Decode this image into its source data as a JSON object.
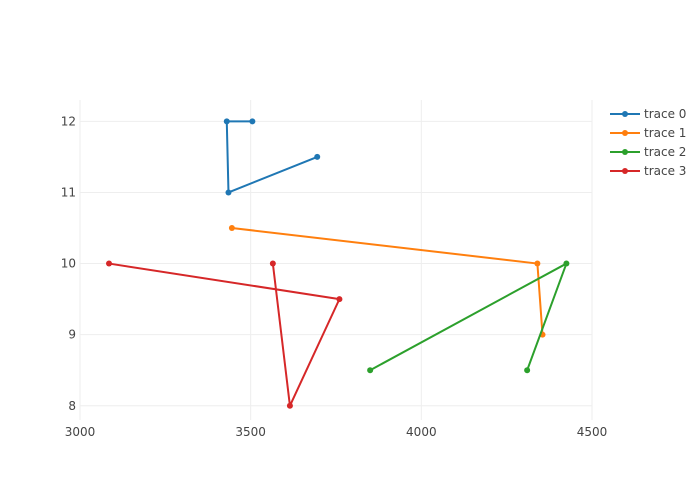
{
  "chart_data": {
    "type": "line",
    "title": "",
    "xlabel": "",
    "ylabel": "",
    "xlim": [
      3000,
      4500
    ],
    "ylim": [
      7.8,
      12.3
    ],
    "grid": true,
    "legend_position": "top-right",
    "x_ticks": [
      "3000",
      "3500",
      "4000",
      "4500"
    ],
    "y_ticks": [
      "8",
      "9",
      "10",
      "11",
      "12"
    ],
    "series": [
      {
        "name": "trace 0",
        "color": "#1f77b4",
        "x": [
          3505,
          3430,
          3435,
          3695
        ],
        "y": [
          12,
          12,
          11,
          11.5
        ]
      },
      {
        "name": "trace 1",
        "color": "#ff7f0e",
        "x": [
          3445,
          4340,
          4355
        ],
        "y": [
          10.5,
          10,
          9
        ]
      },
      {
        "name": "trace 2",
        "color": "#2ca02c",
        "x": [
          3850,
          4425,
          4310
        ],
        "y": [
          8.5,
          10,
          8.5
        ]
      },
      {
        "name": "trace 3",
        "color": "#d62728",
        "x": [
          3565,
          3615,
          3760,
          3085
        ],
        "y": [
          10,
          8,
          9.5,
          10
        ]
      }
    ]
  }
}
